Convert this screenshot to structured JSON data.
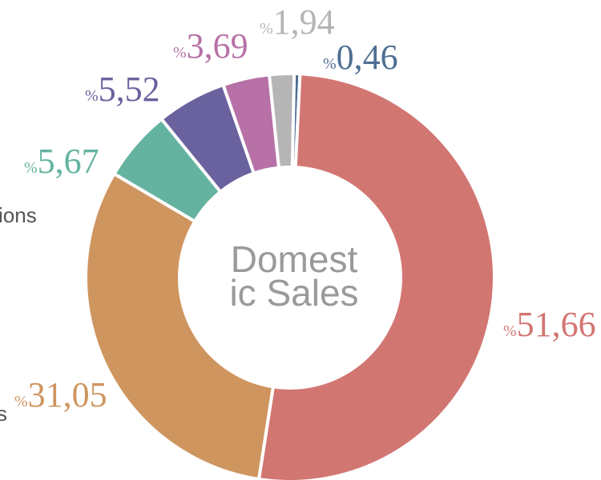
{
  "chart_data": {
    "type": "donut",
    "center_label": [
      "Domest",
      "ic Sales"
    ],
    "categories": [
      null,
      null,
      "s",
      "ions",
      null,
      null,
      null
    ],
    "values": [
      0.46,
      51.66,
      31.05,
      5.67,
      5.52,
      3.69,
      1.94
    ],
    "value_labels": [
      "%0,46",
      "%51,66",
      "%31,05",
      "%5,67",
      "%5,52",
      "%3,69",
      "%1,94"
    ],
    "colors": [
      "#4f6f94",
      "#d27672",
      "#cf955f",
      "#64b3a0",
      "#6a629f",
      "#b771a6",
      "#b5b5b5"
    ]
  }
}
